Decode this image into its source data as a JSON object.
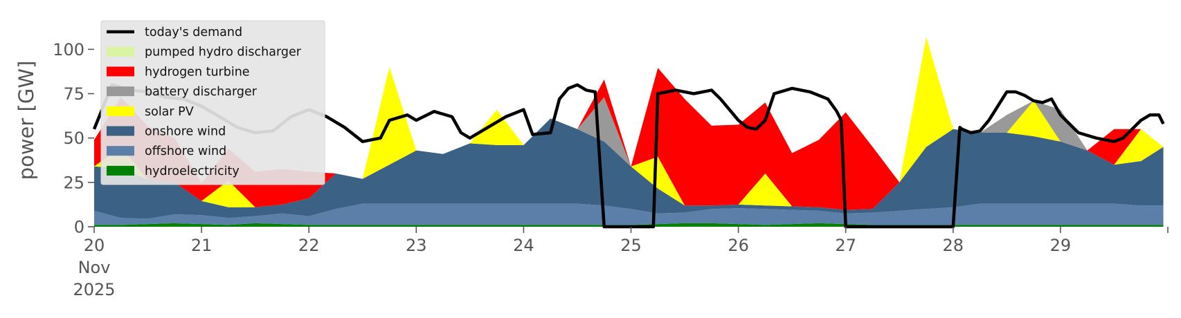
{
  "chart_data": {
    "type": "area",
    "ylabel": "power [GW]",
    "xlabel": "",
    "ylim": [
      0,
      120
    ],
    "yticks": [
      0,
      25,
      50,
      75,
      100
    ],
    "x_start": "2025-11-20 00:00",
    "x_end": "2025-11-29 23:00",
    "x_tick_labels": [
      {
        "day": 20,
        "label": [
          "20",
          "Nov",
          "2025"
        ]
      },
      {
        "day": 21,
        "label": [
          "21"
        ]
      },
      {
        "day": 22,
        "label": [
          "22"
        ]
      },
      {
        "day": 23,
        "label": [
          "23"
        ]
      },
      {
        "day": 24,
        "label": [
          "24"
        ]
      },
      {
        "day": 25,
        "label": [
          "25"
        ]
      },
      {
        "day": 26,
        "label": [
          "26"
        ]
      },
      {
        "day": 27,
        "label": [
          "27"
        ]
      },
      {
        "day": 28,
        "label": [
          "28"
        ]
      },
      {
        "day": 29,
        "label": [
          "29"
        ]
      }
    ],
    "x_hours": [
      0,
      6,
      12,
      18,
      24,
      30,
      36,
      42,
      48,
      54,
      60,
      66,
      72,
      78,
      84,
      90,
      96,
      102,
      108,
      114,
      120,
      126,
      132,
      138,
      144,
      150,
      156,
      162,
      168,
      174,
      180,
      186,
      192,
      198,
      204,
      210,
      216,
      222,
      228,
      234,
      239
    ],
    "stack_order": [
      "hydroelectricity",
      "offshore wind",
      "onshore wind",
      "solar PV",
      "battery discharger",
      "hydrogen turbine",
      "pumped hydro discharger"
    ],
    "series": [
      {
        "name": "hydroelectricity",
        "color": "#008000",
        "values": [
          1,
          1,
          1.5,
          2,
          1.5,
          1,
          2,
          1.5,
          1,
          1,
          1,
          1,
          1,
          1,
          1,
          1,
          1,
          1,
          1,
          1,
          1,
          1.5,
          2,
          2,
          1.5,
          1,
          1.5,
          2,
          1.5,
          1,
          1,
          1,
          1,
          1,
          1,
          1,
          1,
          1,
          1,
          1,
          1
        ]
      },
      {
        "name": "offshore wind",
        "color": "#5b7fa8",
        "values": [
          8,
          4,
          3,
          5,
          5,
          4,
          4,
          6,
          5,
          9,
          12,
          12,
          12,
          12,
          12,
          12,
          12,
          12,
          12,
          11,
          9,
          6,
          6,
          8,
          9,
          9,
          8,
          7,
          6,
          7,
          8,
          9,
          10,
          12,
          12,
          12,
          12,
          12,
          12,
          11,
          11
        ]
      },
      {
        "name": "onshore wind",
        "color": "#3b6184",
        "values": [
          25,
          28,
          22,
          18,
          8,
          6,
          5,
          5,
          10,
          20,
          14,
          22,
          30,
          28,
          34,
          33,
          33,
          48,
          42,
          36,
          24,
          14,
          4,
          2,
          2,
          2,
          2,
          2,
          2,
          2,
          16,
          35,
          44,
          40,
          40,
          38,
          35,
          30,
          22,
          25,
          33
        ]
      },
      {
        "name": "solar PV",
        "color": "#ffff00",
        "values": [
          0,
          12,
          0,
          0,
          0,
          15,
          0,
          0,
          0,
          0,
          0,
          55,
          0,
          0,
          0,
          20,
          0,
          0,
          0,
          0,
          0,
          18,
          0,
          0,
          0,
          18,
          0,
          0,
          0,
          0,
          0,
          62,
          0,
          0,
          0,
          20,
          0,
          0,
          0,
          18,
          0
        ]
      },
      {
        "name": "battery discharger",
        "color": "#999999",
        "values": [
          0,
          0,
          0,
          0,
          0,
          0,
          0,
          0,
          0,
          0,
          0,
          0,
          0,
          0,
          0,
          0,
          0,
          0,
          0,
          25,
          0,
          0,
          0,
          0,
          0,
          0,
          0,
          0,
          0,
          0,
          0,
          0,
          0,
          0,
          10,
          0,
          18,
          0,
          0,
          0,
          0
        ]
      },
      {
        "name": "hydrogen turbine",
        "color": "#ff0000",
        "values": [
          15,
          28,
          30,
          25,
          10,
          18,
          20,
          20,
          15,
          0,
          0,
          0,
          0,
          0,
          0,
          0,
          0,
          0,
          0,
          10,
          0,
          50,
          60,
          45,
          45,
          40,
          30,
          38,
          55,
          35,
          0,
          0,
          0,
          0,
          0,
          0,
          0,
          0,
          20,
          0,
          0
        ]
      },
      {
        "name": "pumped hydro discharger",
        "color": "#d9f5a3",
        "values": [
          0,
          0,
          0,
          0,
          0,
          0,
          0,
          0,
          0,
          0,
          0,
          0,
          0,
          0,
          0,
          0,
          0,
          0,
          0,
          0,
          0,
          0,
          0,
          0,
          0,
          0,
          0,
          0,
          0,
          0,
          0,
          0,
          0,
          0,
          0,
          0,
          0,
          0,
          0,
          0,
          0
        ]
      }
    ],
    "demand": {
      "name": "today's demand",
      "color": "#000000",
      "hours": [
        0,
        4,
        8,
        12,
        16,
        20,
        24,
        28,
        32,
        36,
        40,
        44,
        48,
        52,
        56,
        60,
        64,
        66,
        70,
        72,
        76,
        80,
        82,
        84,
        88,
        92,
        96,
        98,
        102,
        104,
        106,
        108,
        110,
        112,
        114,
        115,
        116,
        120,
        123,
        125,
        126,
        130,
        132,
        134,
        138,
        140,
        142,
        144,
        146,
        148,
        150,
        152,
        156,
        160,
        164,
        166,
        167,
        168,
        169.5,
        170,
        175,
        180,
        185,
        190,
        191,
        192,
        193.5,
        194,
        196,
        198,
        200,
        204,
        206,
        208,
        210,
        212,
        214,
        216,
        218,
        220,
        224,
        228,
        230,
        232,
        234,
        236,
        238,
        239
      ],
      "values": [
        55,
        80,
        77,
        76,
        73,
        72,
        68,
        62,
        56,
        53,
        54,
        62,
        66,
        62,
        56,
        48,
        50,
        60,
        63,
        60,
        65,
        62,
        53,
        50,
        56,
        62,
        66,
        52,
        53,
        72,
        78,
        80,
        77,
        76,
        0,
        0,
        0,
        0,
        0,
        0,
        75,
        77,
        76,
        75,
        77,
        72,
        66,
        60,
        56,
        55,
        60,
        75,
        78,
        76,
        72,
        65,
        60,
        0,
        0,
        0,
        0,
        0,
        0,
        0,
        0,
        0,
        56,
        55,
        53,
        54,
        60,
        76,
        76,
        74,
        71,
        70,
        72,
        63,
        58,
        53,
        50,
        48,
        50,
        55,
        60,
        63,
        63,
        58
      ]
    },
    "legend": {
      "placement": "upper left",
      "entries": [
        "today's demand",
        "pumped hydro discharger",
        "hydrogen turbine",
        "battery discharger",
        "solar PV",
        "onshore wind",
        "offshore wind",
        "hydroelectricity"
      ],
      "colors": [
        "#000000",
        "#d9f5a3",
        "#ff0000",
        "#999999",
        "#ffff00",
        "#3b6184",
        "#5b7fa8",
        "#008000"
      ]
    },
    "grid": false
  }
}
